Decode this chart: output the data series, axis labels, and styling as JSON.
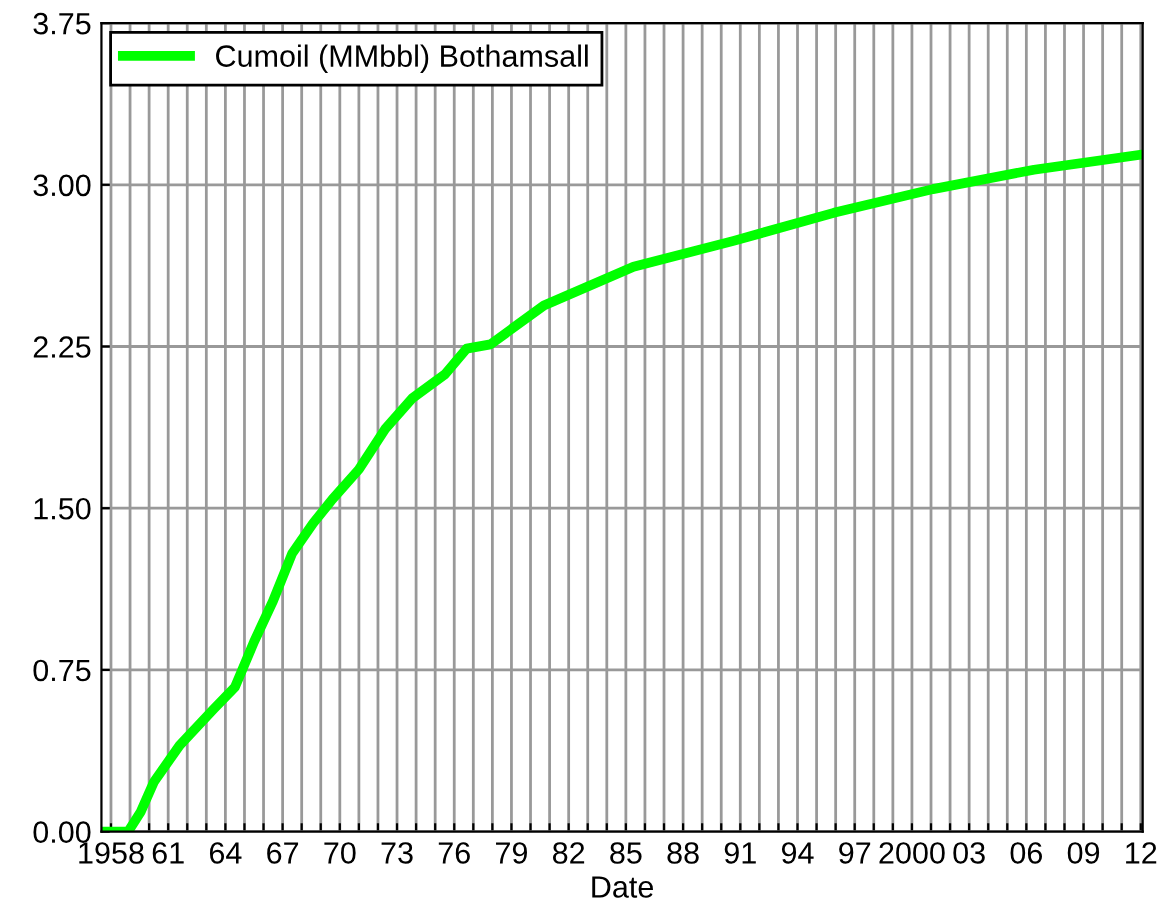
{
  "chart_data": {
    "type": "line",
    "xlabel": "Date",
    "series": [
      {
        "name": "Cumoil (MMbbl) Bothamsall",
        "color": "#00ff00",
        "x": [
          1957.6,
          1958.9,
          1959.55,
          1960.25,
          1961.6,
          1963.4,
          1964.5,
          1965.5,
          1966.5,
          1967.5,
          1968.6,
          1969.6,
          1971.0,
          1972.4,
          1973.8,
          1975.5,
          1976.65,
          1977.9,
          1980.7,
          1985.4,
          1990.65,
          1995.9,
          2001.1,
          2006.4,
          2012.0
        ],
        "values": [
          0,
          0,
          0.09,
          0.23,
          0.4,
          0.57,
          0.67,
          0.88,
          1.07,
          1.29,
          1.43,
          1.54,
          1.68,
          1.87,
          2.01,
          2.12,
          2.24,
          2.26,
          2.44,
          2.62,
          2.74,
          2.87,
          2.98,
          3.07,
          3.14
        ]
      }
    ],
    "xlim": [
      1957.5,
      2012.1
    ],
    "xticks": [
      {
        "value": 1958,
        "label": "1958"
      },
      {
        "value": 1959,
        "label": null
      },
      {
        "value": 1960,
        "label": null
      },
      {
        "value": 1961,
        "label": "61"
      },
      {
        "value": 1962,
        "label": null
      },
      {
        "value": 1963,
        "label": null
      },
      {
        "value": 1964,
        "label": "64"
      },
      {
        "value": 1965,
        "label": null
      },
      {
        "value": 1966,
        "label": null
      },
      {
        "value": 1967,
        "label": "67"
      },
      {
        "value": 1968,
        "label": null
      },
      {
        "value": 1969,
        "label": null
      },
      {
        "value": 1970,
        "label": "70"
      },
      {
        "value": 1971,
        "label": null
      },
      {
        "value": 1972,
        "label": null
      },
      {
        "value": 1973,
        "label": "73"
      },
      {
        "value": 1974,
        "label": null
      },
      {
        "value": 1975,
        "label": null
      },
      {
        "value": 1976,
        "label": "76"
      },
      {
        "value": 1977,
        "label": null
      },
      {
        "value": 1978,
        "label": null
      },
      {
        "value": 1979,
        "label": "79"
      },
      {
        "value": 1980,
        "label": null
      },
      {
        "value": 1981,
        "label": null
      },
      {
        "value": 1982,
        "label": "82"
      },
      {
        "value": 1983,
        "label": null
      },
      {
        "value": 1984,
        "label": null
      },
      {
        "value": 1985,
        "label": "85"
      },
      {
        "value": 1986,
        "label": null
      },
      {
        "value": 1987,
        "label": null
      },
      {
        "value": 1988,
        "label": "88"
      },
      {
        "value": 1989,
        "label": null
      },
      {
        "value": 1990,
        "label": null
      },
      {
        "value": 1991,
        "label": "91"
      },
      {
        "value": 1992,
        "label": null
      },
      {
        "value": 1993,
        "label": null
      },
      {
        "value": 1994,
        "label": "94"
      },
      {
        "value": 1995,
        "label": null
      },
      {
        "value": 1996,
        "label": null
      },
      {
        "value": 1997,
        "label": "97"
      },
      {
        "value": 1998,
        "label": null
      },
      {
        "value": 1999,
        "label": null
      },
      {
        "value": 2000,
        "label": "2000"
      },
      {
        "value": 2001,
        "label": null
      },
      {
        "value": 2002,
        "label": null
      },
      {
        "value": 2003,
        "label": "03"
      },
      {
        "value": 2004,
        "label": null
      },
      {
        "value": 2005,
        "label": null
      },
      {
        "value": 2006,
        "label": "06"
      },
      {
        "value": 2007,
        "label": null
      },
      {
        "value": 2008,
        "label": null
      },
      {
        "value": 2009,
        "label": "09"
      },
      {
        "value": 2010,
        "label": null
      },
      {
        "value": 2011,
        "label": null
      },
      {
        "value": 2012,
        "label": "12"
      }
    ],
    "ylim": [
      0,
      3.75
    ],
    "yticks": [
      {
        "value": 0,
        "label": "0.00"
      },
      {
        "value": 0.75,
        "label": "0.75"
      },
      {
        "value": 1.5,
        "label": "1.50"
      },
      {
        "value": 2.25,
        "label": "2.25"
      },
      {
        "value": 3.0,
        "label": "3.00"
      },
      {
        "value": 3.75,
        "label": "3.75"
      }
    ],
    "grid": true,
    "legend": "top left",
    "marker": "none",
    "line_style": "solid"
  }
}
